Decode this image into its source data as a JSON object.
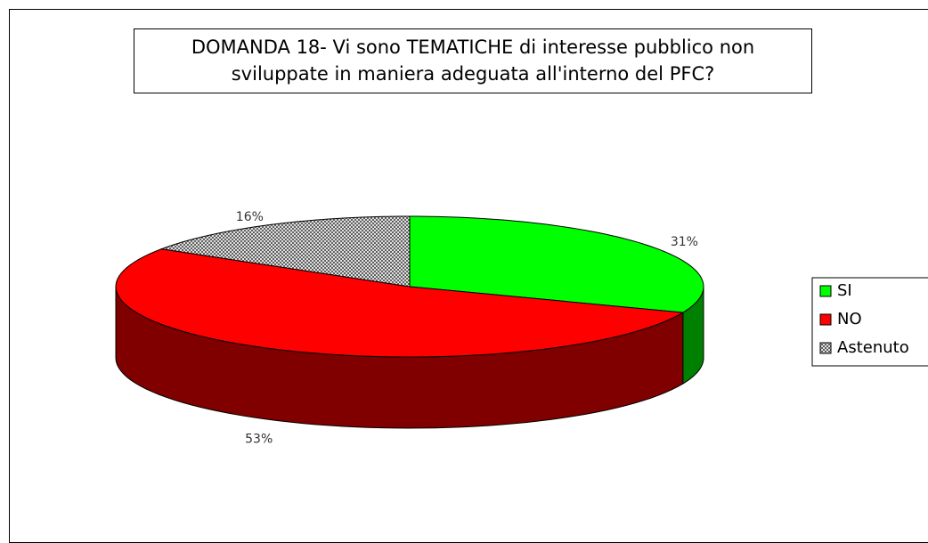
{
  "chart_data": {
    "type": "pie3d",
    "title": "DOMANDA 18- Vi sono TEMATICHE di interesse pubblico non sviluppate in maniera adeguata all'interno del PFC?",
    "categories": [
      "SI",
      "NO",
      "Astenuto"
    ],
    "values": [
      31,
      53,
      16
    ],
    "value_labels": [
      "31%",
      "53%",
      "16%"
    ],
    "colors": [
      "#00ff00",
      "#ff0000",
      "#a8a8a8"
    ],
    "hatch": [
      false,
      false,
      true
    ],
    "legend": "right"
  }
}
